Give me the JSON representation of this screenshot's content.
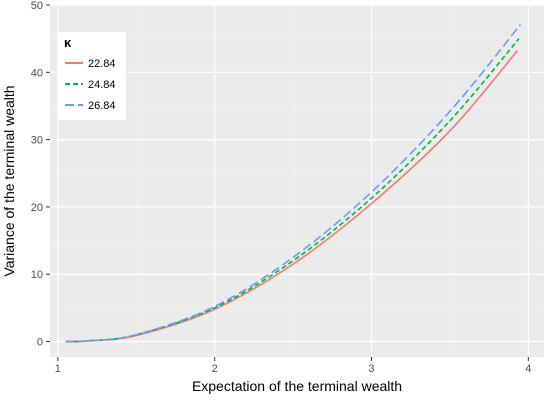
{
  "chart_data": {
    "type": "line",
    "xlabel": "Expectation of the terminal wealth",
    "ylabel": "Variance of the terminal wealth",
    "xlim": [
      0.95,
      4.1
    ],
    "ylim": [
      -2.3,
      50
    ],
    "x_ticks": [
      1,
      2,
      3,
      4
    ],
    "y_ticks": [
      0,
      10,
      20,
      30,
      40,
      50
    ],
    "grid": true,
    "background": "#ebebeb",
    "legend": {
      "title": "κ",
      "placement": "top-left",
      "entries": [
        "22.84",
        "24.84",
        "26.84"
      ]
    },
    "series": [
      {
        "name": "22.84",
        "color": "#f8766d",
        "line_style": "solid",
        "x": [
          1.05,
          1.2,
          1.5,
          2.0,
          2.5,
          3.0,
          3.5,
          3.93
        ],
        "y": [
          0,
          0.1,
          0.9,
          4.8,
          11.5,
          20.5,
          31.3,
          43.2
        ]
      },
      {
        "name": "24.84",
        "color": "#00ba38",
        "line_style": "dashed",
        "x": [
          1.05,
          1.2,
          1.5,
          2.0,
          2.5,
          3.0,
          3.5,
          3.94
        ],
        "y": [
          0,
          0.1,
          1.0,
          5.0,
          12.0,
          21.3,
          32.8,
          45.0
        ]
      },
      {
        "name": "26.84",
        "color": "#619cff",
        "line_style": "longdash",
        "x": [
          1.05,
          1.2,
          1.5,
          2.0,
          2.5,
          3.0,
          3.5,
          3.95
        ],
        "y": [
          0,
          0.1,
          1.0,
          5.2,
          12.5,
          22.2,
          34.2,
          47.1
        ]
      }
    ]
  }
}
